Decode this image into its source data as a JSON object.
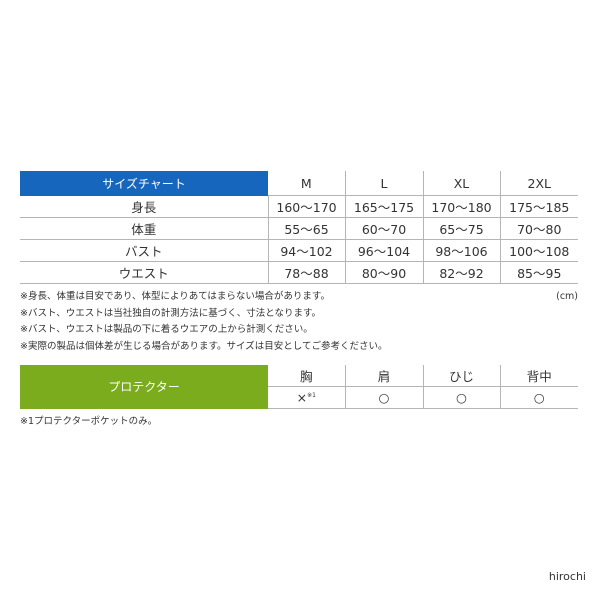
{
  "size_chart": {
    "title": "サイズチャート",
    "columns": [
      "M",
      "L",
      "XL",
      "2XL"
    ],
    "rows": [
      {
        "label": "身長",
        "values": [
          "160〜170",
          "165〜175",
          "170〜180",
          "175〜185"
        ]
      },
      {
        "label": "体重",
        "values": [
          "55〜65",
          "60〜70",
          "65〜75",
          "70〜80"
        ]
      },
      {
        "label": "バスト",
        "values": [
          "94〜102",
          "96〜104",
          "98〜106",
          "100〜108"
        ]
      },
      {
        "label": "ウエスト",
        "values": [
          "78〜88",
          "80〜90",
          "82〜92",
          "85〜95"
        ]
      }
    ],
    "unit": "(cm)",
    "header_color": "#1766bd"
  },
  "notes": [
    "※身長、体重は目安であり、体型によりあてはまらない場合があります。",
    "※バスト、ウエストは当社独自の計測方法に基づく、寸法となります。",
    "※バスト、ウエストは製品の下に着るウエアの上から計測ください。",
    "※実際の製品は個体差が生じる場合があります。サイズは目安としてご参考ください。"
  ],
  "protector": {
    "title": "プロテクター",
    "header_color": "#7aac1e",
    "columns": [
      "胸",
      "肩",
      "ひじ",
      "背中"
    ],
    "values": [
      "×",
      "○",
      "○",
      "○"
    ],
    "chest_note_mark": "※1",
    "footnote": "※1プロテクターポケットのみ。"
  },
  "watermark": "hirochi"
}
